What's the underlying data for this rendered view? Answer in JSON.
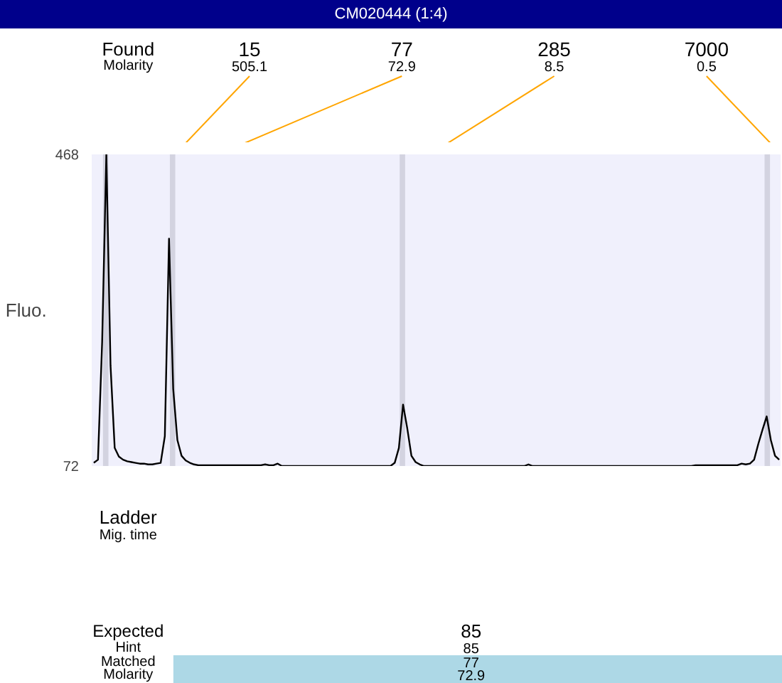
{
  "chart_data": {
    "type": "line",
    "title": "CM020444 (1:4)",
    "ylabel": "Fluo.",
    "categories": [
      null,
      null,
      null,
      null,
      null,
      null,
      null,
      null,
      null,
      null,
      null,
      null,
      null,
      null,
      null,
      null,
      null,
      null,
      null,
      null,
      null,
      null,
      null,
      null,
      null,
      null,
      null,
      null,
      null,
      null,
      null,
      null,
      null,
      null,
      null,
      null,
      null,
      null,
      null,
      null,
      null,
      null,
      null,
      null,
      null,
      null,
      null,
      null,
      null,
      null,
      null,
      null,
      null,
      null,
      null,
      null,
      null,
      null,
      null,
      null,
      null,
      null,
      null,
      null,
      null,
      null,
      null,
      null,
      null,
      null,
      null,
      null,
      null,
      null,
      null,
      null,
      null,
      null,
      null,
      null,
      null,
      null,
      null,
      null,
      null,
      null,
      null,
      null,
      null,
      null,
      null,
      null,
      null,
      null,
      null,
      null,
      null,
      null,
      null,
      null,
      null,
      null,
      null,
      null,
      null,
      null,
      null,
      null,
      null,
      null,
      null,
      null,
      null,
      null,
      null,
      null,
      null,
      null,
      null,
      null,
      null,
      null,
      null,
      null,
      null,
      null,
      null,
      null,
      null,
      null,
      null,
      null,
      null,
      null,
      null,
      null,
      null,
      null,
      null,
      null,
      null,
      null,
      null,
      null,
      null,
      null,
      null,
      null,
      null,
      null,
      null,
      null,
      null,
      null,
      null,
      null,
      null,
      null,
      null,
      null,
      null,
      null,
      null,
      null,
      null
    ],
    "series": [
      {
        "color": "#000000",
        "values": [
          76,
          80,
          230,
          468,
          200,
          95,
          84,
          80,
          78,
          77,
          76,
          75,
          75,
          74,
          74,
          75,
          76,
          110,
          361,
          170,
          105,
          85,
          79,
          76,
          74,
          73,
          73,
          73,
          73,
          73,
          73,
          73,
          73,
          73,
          73,
          73,
          73,
          73,
          73,
          73,
          73,
          74,
          73,
          73,
          75,
          72,
          72,
          72,
          72,
          72,
          72,
          72,
          72,
          72,
          72,
          72,
          72,
          72,
          72,
          72,
          72,
          72,
          72,
          72,
          72,
          72,
          72,
          72,
          72,
          72,
          72,
          72,
          76,
          95,
          150,
          120,
          85,
          77,
          74,
          72,
          72,
          72,
          72,
          72,
          72,
          72,
          72,
          72,
          72,
          72,
          72,
          72,
          72,
          72,
          72,
          72,
          72,
          72,
          72,
          72,
          72,
          72,
          72,
          72,
          74,
          72,
          72,
          72,
          72,
          72,
          72,
          72,
          72,
          72,
          72,
          72,
          72,
          72,
          72,
          72,
          72,
          72,
          72,
          72,
          72,
          72,
          72,
          72,
          72,
          72,
          72,
          72,
          72,
          72,
          72,
          72,
          72,
          72,
          72,
          72,
          72,
          72,
          72,
          72,
          73,
          73,
          73,
          73,
          73,
          73,
          73,
          73,
          73,
          73,
          73,
          75,
          74,
          75,
          80,
          100,
          118,
          135,
          105,
          85,
          80
        ]
      }
    ],
    "ylim": [
      72,
      468
    ],
    "yticks": [
      72,
      468
    ],
    "tick_labels": "y",
    "annotations": [
      "15",
      "505.1",
      "77",
      "72.9",
      "285",
      "8.5",
      "7000",
      "0.5",
      "Found",
      "Molarity",
      "Ladder",
      "Mig. time",
      "Expected",
      "Hint",
      "Matched",
      "Molarity",
      "85",
      "85",
      "77",
      "72.9"
    ]
  }
}
